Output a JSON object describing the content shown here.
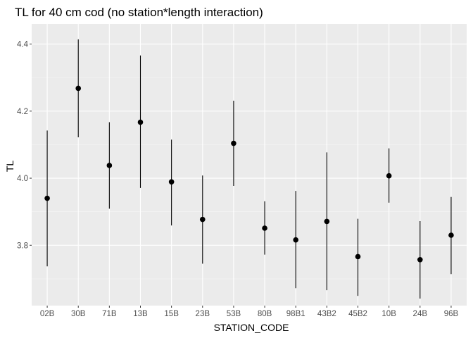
{
  "chart_data": {
    "type": "scatter",
    "title": "TL for 40 cm cod (no station*length interaction)",
    "xlabel": "STATION_CODE",
    "ylabel": "TL",
    "ylim": [
      3.62,
      4.46
    ],
    "yticks": [
      3.8,
      4.0,
      4.2,
      4.4
    ],
    "ytick_labels": [
      "3.8",
      "4.0",
      "4.2",
      "4.4"
    ],
    "grid": true,
    "legend": "none",
    "categories": [
      "02B",
      "30B",
      "71B",
      "13B",
      "15B",
      "23B",
      "53B",
      "80B",
      "98B1",
      "43B2",
      "45B2",
      "10B",
      "24B",
      "96B"
    ],
    "estimate": [
      3.94,
      4.268,
      4.038,
      4.167,
      3.989,
      3.877,
      4.104,
      3.851,
      3.816,
      3.871,
      3.766,
      4.007,
      3.757,
      3.83
    ],
    "lower": [
      3.737,
      4.122,
      3.909,
      3.971,
      3.859,
      3.745,
      3.977,
      3.772,
      3.672,
      3.666,
      3.649,
      3.927,
      3.641,
      3.714
    ],
    "upper": [
      4.142,
      4.414,
      4.167,
      4.366,
      4.115,
      4.008,
      4.231,
      3.931,
      3.962,
      4.077,
      3.879,
      4.089,
      3.872,
      3.944
    ]
  },
  "colors": {
    "panel_background": "#ebebeb",
    "grid_major": "#ffffff",
    "grid_minor": "#f5f5f5",
    "point": "#000000",
    "errorbar": "#000000",
    "tick_text": "#4d4d4d",
    "tick_mark": "#333333"
  }
}
